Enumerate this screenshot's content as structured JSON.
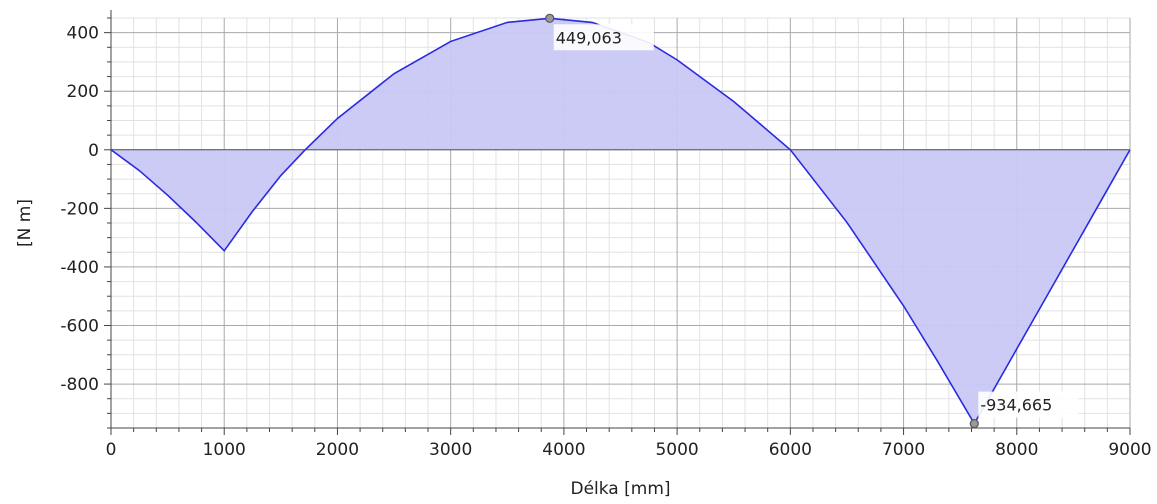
{
  "chart_data": {
    "type": "area",
    "title": "",
    "xlabel": "Délka [mm]",
    "ylabel": "[N m]",
    "xlim": [
      0,
      9000
    ],
    "ylim": [
      -950,
      450
    ],
    "x_ticks": [
      0,
      1000,
      2000,
      3000,
      4000,
      5000,
      6000,
      7000,
      8000,
      9000
    ],
    "x_tick_labels": [
      "0",
      "1000",
      "2000",
      "3000",
      "4000",
      "5000",
      "6000",
      "7000",
      "8000",
      "9000"
    ],
    "y_ticks": [
      400,
      200,
      0,
      -200,
      -400,
      -600,
      -800
    ],
    "y_tick_labels": [
      "400",
      "200",
      "0",
      "-200",
      "-400",
      "-600",
      "-800"
    ],
    "grid": true,
    "positive_fill_color": "#c8c8f5",
    "negative_fill_color": "#ffc4c4",
    "line_color": "#2a2ae0",
    "series": [
      {
        "x": [
          0,
          250,
          500,
          750,
          1000,
          1250,
          1500,
          1715,
          2000,
          2500,
          3000,
          3500,
          3875,
          4250,
          4750,
          5000,
          5500,
          6000,
          6500,
          7000,
          7300,
          7625,
          7900,
          8200,
          8500,
          8750,
          9000
        ],
        "values": [
          0,
          -71,
          -155,
          -247,
          -345,
          -210,
          -88,
          0,
          107,
          260,
          370,
          435,
          449,
          435,
          366,
          307,
          165,
          0,
          -248,
          -533,
          -722,
          -935,
          -748,
          -544,
          -340,
          -170,
          0
        ]
      }
    ],
    "annotations": [
      {
        "x": 3875,
        "y": 449,
        "label": "449,063"
      },
      {
        "x": 7625,
        "y": -935,
        "label": "-934,665"
      }
    ]
  }
}
